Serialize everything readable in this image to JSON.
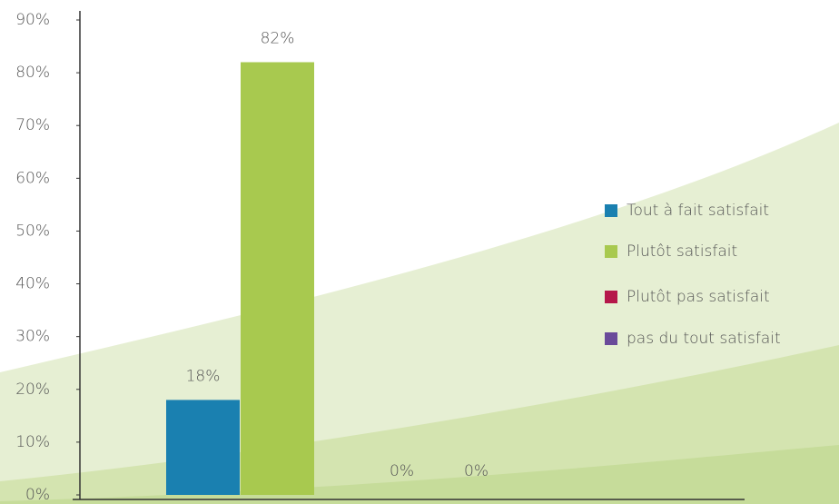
{
  "chart_data": {
    "type": "bar",
    "categories": [
      null
    ],
    "series": [
      {
        "name": "Tout à fait satisfait",
        "color": "#1a80b0",
        "values": [
          18
        ],
        "value_labels": [
          "18%"
        ]
      },
      {
        "name": "Plutôt satisfait",
        "color": "#a8c94f",
        "values": [
          82
        ],
        "value_labels": [
          "82%"
        ]
      },
      {
        "name": "Plutôt pas satisfait",
        "color": "#b5174a",
        "values": [
          0
        ],
        "value_labels": [
          "0%"
        ]
      },
      {
        "name": "pas du tout satisfait",
        "color": "#6a4a9a",
        "values": [
          0
        ],
        "value_labels": [
          "0%"
        ]
      }
    ],
    "ylim": [
      0,
      90
    ],
    "yticks": [
      {
        "value": 0,
        "label": "0%"
      },
      {
        "value": 10,
        "label": "10%"
      },
      {
        "value": 20,
        "label": "20%"
      },
      {
        "value": 30,
        "label": "30%"
      },
      {
        "value": 40,
        "label": "40%"
      },
      {
        "value": 50,
        "label": "50%"
      },
      {
        "value": 60,
        "label": "60%"
      },
      {
        "value": 70,
        "label": "70%"
      },
      {
        "value": 80,
        "label": "80%"
      },
      {
        "value": 90,
        "label": "90%"
      }
    ],
    "grid": false,
    "legend": "right"
  }
}
